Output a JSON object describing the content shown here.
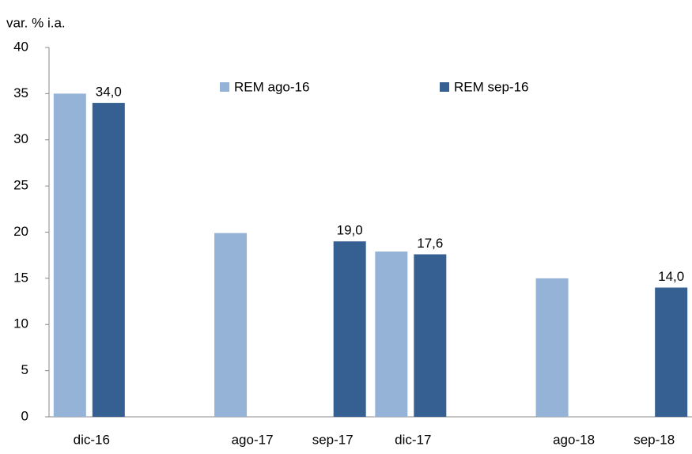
{
  "chart_data": {
    "type": "bar",
    "y_label": "var. % i.a.",
    "categories": [
      "dic-16",
      null,
      "ago-17",
      "sep-17",
      "dic-17",
      null,
      "ago-18",
      "sep-18"
    ],
    "series": [
      {
        "name": "REM ago-16",
        "color": "#95b3d7",
        "values": [
          35,
          null,
          19.9,
          null,
          17.9,
          null,
          15,
          null
        ]
      },
      {
        "name": "REM sep-16",
        "color": "#366092",
        "values": [
          34,
          null,
          null,
          19,
          17.6,
          null,
          null,
          14
        ],
        "value_labels": [
          "34,0",
          null,
          null,
          "19,0",
          "17,6",
          null,
          null,
          "14,0"
        ]
      }
    ],
    "ylim": [
      0,
      40
    ],
    "yticks": [
      0,
      5,
      10,
      15,
      20,
      25,
      30,
      35,
      40
    ],
    "grid": false
  }
}
